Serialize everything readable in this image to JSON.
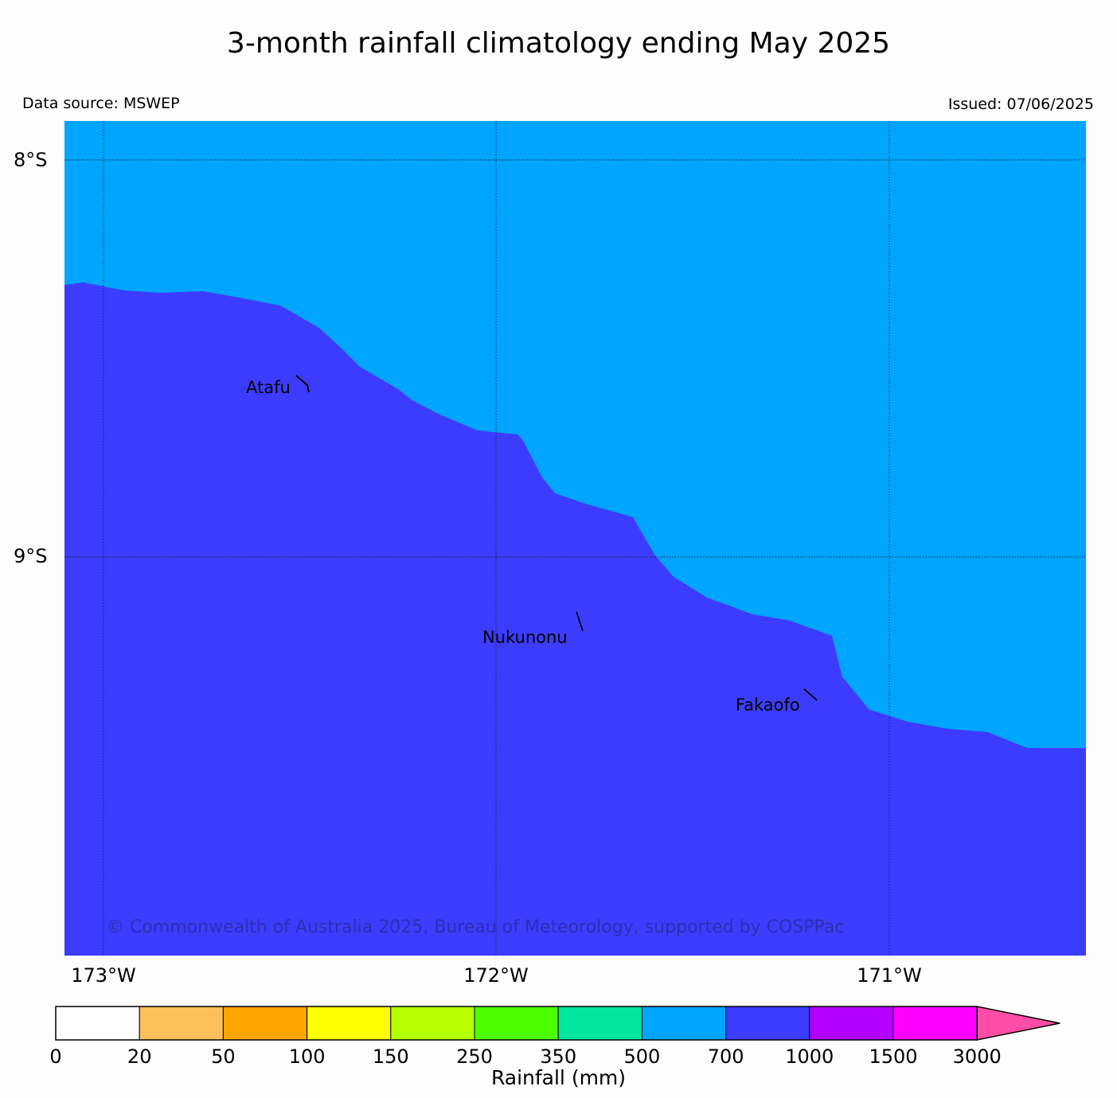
{
  "title": "3-month rainfall climatology ending May 2025",
  "data_source": "Data source: MSWEP",
  "issued": "Issued: 07/06/2025",
  "copyright": "© Commonwealth of Australia 2025, Bureau of Meteorology, supported by COSPPac",
  "lat_labels": [
    "8°S",
    "9°S"
  ],
  "lon_labels": [
    "173°W",
    "172°W",
    "171°W"
  ],
  "places": [
    "Atafu",
    "Nukunonu",
    "Fakaofo"
  ],
  "colorbar": {
    "title": "Rainfall (mm)",
    "ticks": [
      "0",
      "20",
      "50",
      "100",
      "150",
      "250",
      "350",
      "500",
      "700",
      "1000",
      "1500",
      "3000"
    ],
    "colors": [
      "#ffffff",
      "#fdbf5a",
      "#ffa500",
      "#ffff00",
      "#b4ff00",
      "#4cff00",
      "#00e5a0",
      "#00a5ff",
      "#3c3cff",
      "#b400ff",
      "#ff00ff"
    ],
    "extend_color": "#ff4da6"
  },
  "map_colors": {
    "band_500_700": "#00a5ff",
    "band_700_1000": "#3c3cff"
  }
}
